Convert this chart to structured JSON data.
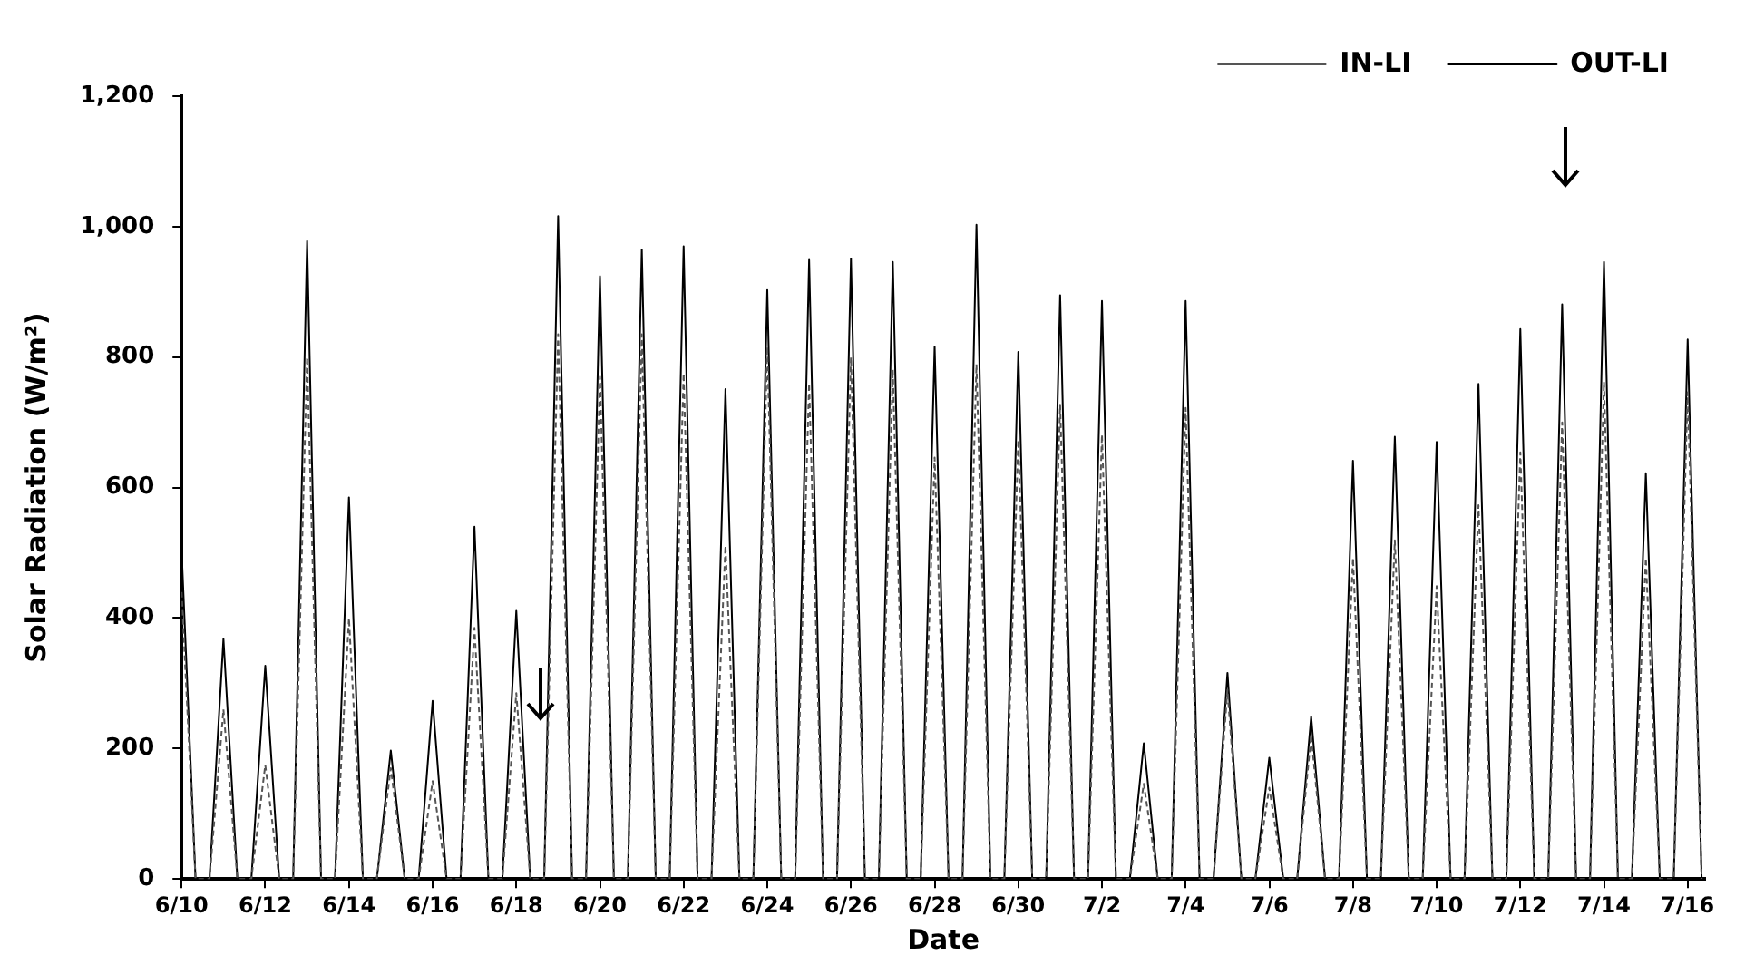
{
  "chart_data": {
    "type": "line",
    "xlabel": "Date",
    "ylabel": "Solar Radiation (W/m²)",
    "x": [
      "--06-10T12:00",
      "--06-10T20:00",
      "--06-11T04:00",
      "--06-11T12:00",
      "--06-11T20:00",
      "--06-12T04:00",
      "--06-12T12:00",
      "--06-12T20:00",
      "--06-13T04:00",
      "--06-13T12:00",
      "--06-13T20:00",
      "--06-14T04:00",
      "--06-14T12:00",
      "--06-14T20:00",
      "--06-15T04:00",
      "--06-15T12:00",
      "--06-15T20:00",
      "--06-16T04:00",
      "--06-16T12:00",
      "--06-16T20:00",
      "--06-17T04:00",
      "--06-17T12:00",
      "--06-17T20:00",
      "--06-18T04:00",
      "--06-18T12:00",
      "--06-18T20:00",
      "--06-19T04:00",
      "--06-19T12:00",
      "--06-19T20:00",
      "--06-20T04:00",
      "--06-20T12:00",
      "--06-20T20:00",
      "--06-21T04:00",
      "--06-21T12:00",
      "--06-21T20:00",
      "--06-22T04:00",
      "--06-22T12:00",
      "--06-22T20:00",
      "--06-23T04:00",
      "--06-23T12:00",
      "--06-23T20:00",
      "--06-24T04:00",
      "--06-24T12:00",
      "--06-24T20:00",
      "--06-25T04:00",
      "--06-25T12:00",
      "--06-25T20:00",
      "--06-26T04:00",
      "--06-26T12:00",
      "--06-26T20:00",
      "--06-27T04:00",
      "--06-27T12:00",
      "--06-27T20:00",
      "--06-28T04:00",
      "--06-28T12:00",
      "--06-28T20:00",
      "--06-29T04:00",
      "--06-29T12:00",
      "--06-29T20:00",
      "--06-30T04:00",
      "--06-30T12:00",
      "--06-30T20:00",
      "--07-01T04:00",
      "--07-01T12:00",
      "--07-01T20:00",
      "--07-02T04:00",
      "--07-02T12:00",
      "--07-02T20:00",
      "--07-03T04:00",
      "--07-03T12:00",
      "--07-03T20:00",
      "--07-04T04:00",
      "--07-04T12:00",
      "--07-04T20:00",
      "--07-05T04:00",
      "--07-05T12:00",
      "--07-05T20:00",
      "--07-06T04:00",
      "--07-06T12:00",
      "--07-06T20:00",
      "--07-07T04:00",
      "--07-07T12:00",
      "--07-07T20:00",
      "--07-08T04:00",
      "--07-08T12:00",
      "--07-08T20:00",
      "--07-09T04:00",
      "--07-09T12:00",
      "--07-09T20:00",
      "--07-10T04:00",
      "--07-10T12:00",
      "--07-10T20:00",
      "--07-11T04:00",
      "--07-11T12:00",
      "--07-11T20:00",
      "--07-12T04:00",
      "--07-12T12:00",
      "--07-12T20:00",
      "--07-13T04:00",
      "--07-13T12:00",
      "--07-13T20:00",
      "--07-14T04:00",
      "--07-14T12:00",
      "--07-14T20:00",
      "--07-15T04:00",
      "--07-15T12:00",
      "--07-15T20:00",
      "--07-16T04:00",
      "--07-16T12:00",
      "--07-16T20:00"
    ],
    "series": [
      {
        "name": "IN-LI",
        "color": "#555555",
        "line_style": "dashed",
        "values": [
          440,
          0,
          0,
          260,
          0,
          0,
          175,
          0,
          0,
          800,
          0,
          0,
          400,
          0,
          0,
          170,
          0,
          0,
          150,
          0,
          0,
          385,
          0,
          0,
          285,
          0,
          0,
          835,
          0,
          0,
          770,
          0,
          0,
          835,
          0,
          0,
          775,
          0,
          0,
          511,
          0,
          0,
          816,
          0,
          0,
          760,
          0,
          0,
          800,
          0,
          0,
          781,
          0,
          0,
          646,
          0,
          0,
          789,
          0,
          0,
          673,
          0,
          0,
          727,
          0,
          0,
          681,
          0,
          0,
          146,
          0,
          0,
          722,
          0,
          0,
          290,
          0,
          0,
          140,
          0,
          0,
          220,
          0,
          0,
          492,
          0,
          0,
          519,
          0,
          0,
          449,
          0,
          0,
          573,
          0,
          0,
          654,
          0,
          0,
          700,
          0,
          0,
          762,
          0,
          0,
          492,
          0,
          0,
          746,
          0
        ]
      },
      {
        "name": "OUT-LI",
        "color": "#000000",
        "line_style": "solid",
        "values": [
          503,
          0,
          0,
          368,
          0,
          0,
          327,
          0,
          0,
          978,
          0,
          0,
          585,
          0,
          0,
          197,
          0,
          0,
          273,
          0,
          0,
          540,
          0,
          0,
          411,
          0,
          0,
          1016,
          0,
          0,
          924,
          0,
          0,
          965,
          0,
          0,
          970,
          0,
          0,
          751,
          0,
          0,
          903,
          0,
          0,
          949,
          0,
          0,
          951,
          0,
          0,
          946,
          0,
          0,
          816,
          0,
          0,
          1003,
          0,
          0,
          808,
          0,
          0,
          895,
          0,
          0,
          886,
          0,
          0,
          208,
          0,
          0,
          886,
          0,
          0,
          316,
          0,
          0,
          186,
          0,
          0,
          249,
          0,
          0,
          641,
          0,
          0,
          678,
          0,
          0,
          670,
          0,
          0,
          759,
          0,
          0,
          843,
          0,
          0,
          881,
          0,
          0,
          946,
          0,
          0,
          622,
          0,
          0,
          827,
          0
        ]
      }
    ],
    "xlim": [
      "--06-10T12:00",
      "--07-16T22:00"
    ],
    "xticks": [
      {
        "value": "--06-10T12:00",
        "label": "6/10"
      },
      {
        "value": "--06-12T12:00",
        "label": "6/12"
      },
      {
        "value": "--06-14T12:00",
        "label": "6/14"
      },
      {
        "value": "--06-16T12:00",
        "label": "6/16"
      },
      {
        "value": "--06-18T12:00",
        "label": "6/18"
      },
      {
        "value": "--06-20T12:00",
        "label": "6/20"
      },
      {
        "value": "--06-22T12:00",
        "label": "6/22"
      },
      {
        "value": "--06-24T12:00",
        "label": "6/24"
      },
      {
        "value": "--06-26T12:00",
        "label": "6/26"
      },
      {
        "value": "--06-28T12:00",
        "label": "6/28"
      },
      {
        "value": "--06-30T12:00",
        "label": "6/30"
      },
      {
        "value": "--07-02T12:00",
        "label": "7/2"
      },
      {
        "value": "--07-04T12:00",
        "label": "7/4"
      },
      {
        "value": "--07-06T12:00",
        "label": "7/6"
      },
      {
        "value": "--07-08T12:00",
        "label": "7/8"
      },
      {
        "value": "--07-10T12:00",
        "label": "7/10"
      },
      {
        "value": "--07-12T12:00",
        "label": "7/12"
      },
      {
        "value": "--07-14T12:00",
        "label": "7/14"
      },
      {
        "value": "--07-16T12:00",
        "label": "7/16"
      }
    ],
    "ylim": [
      0,
      1200
    ],
    "yticks": [
      0,
      200,
      400,
      600,
      800,
      {
        "value": 1000,
        "label": "1,000"
      },
      {
        "value": 1200,
        "label": "1,200"
      }
    ],
    "grid": false,
    "legend": "top right",
    "marker": "none"
  }
}
